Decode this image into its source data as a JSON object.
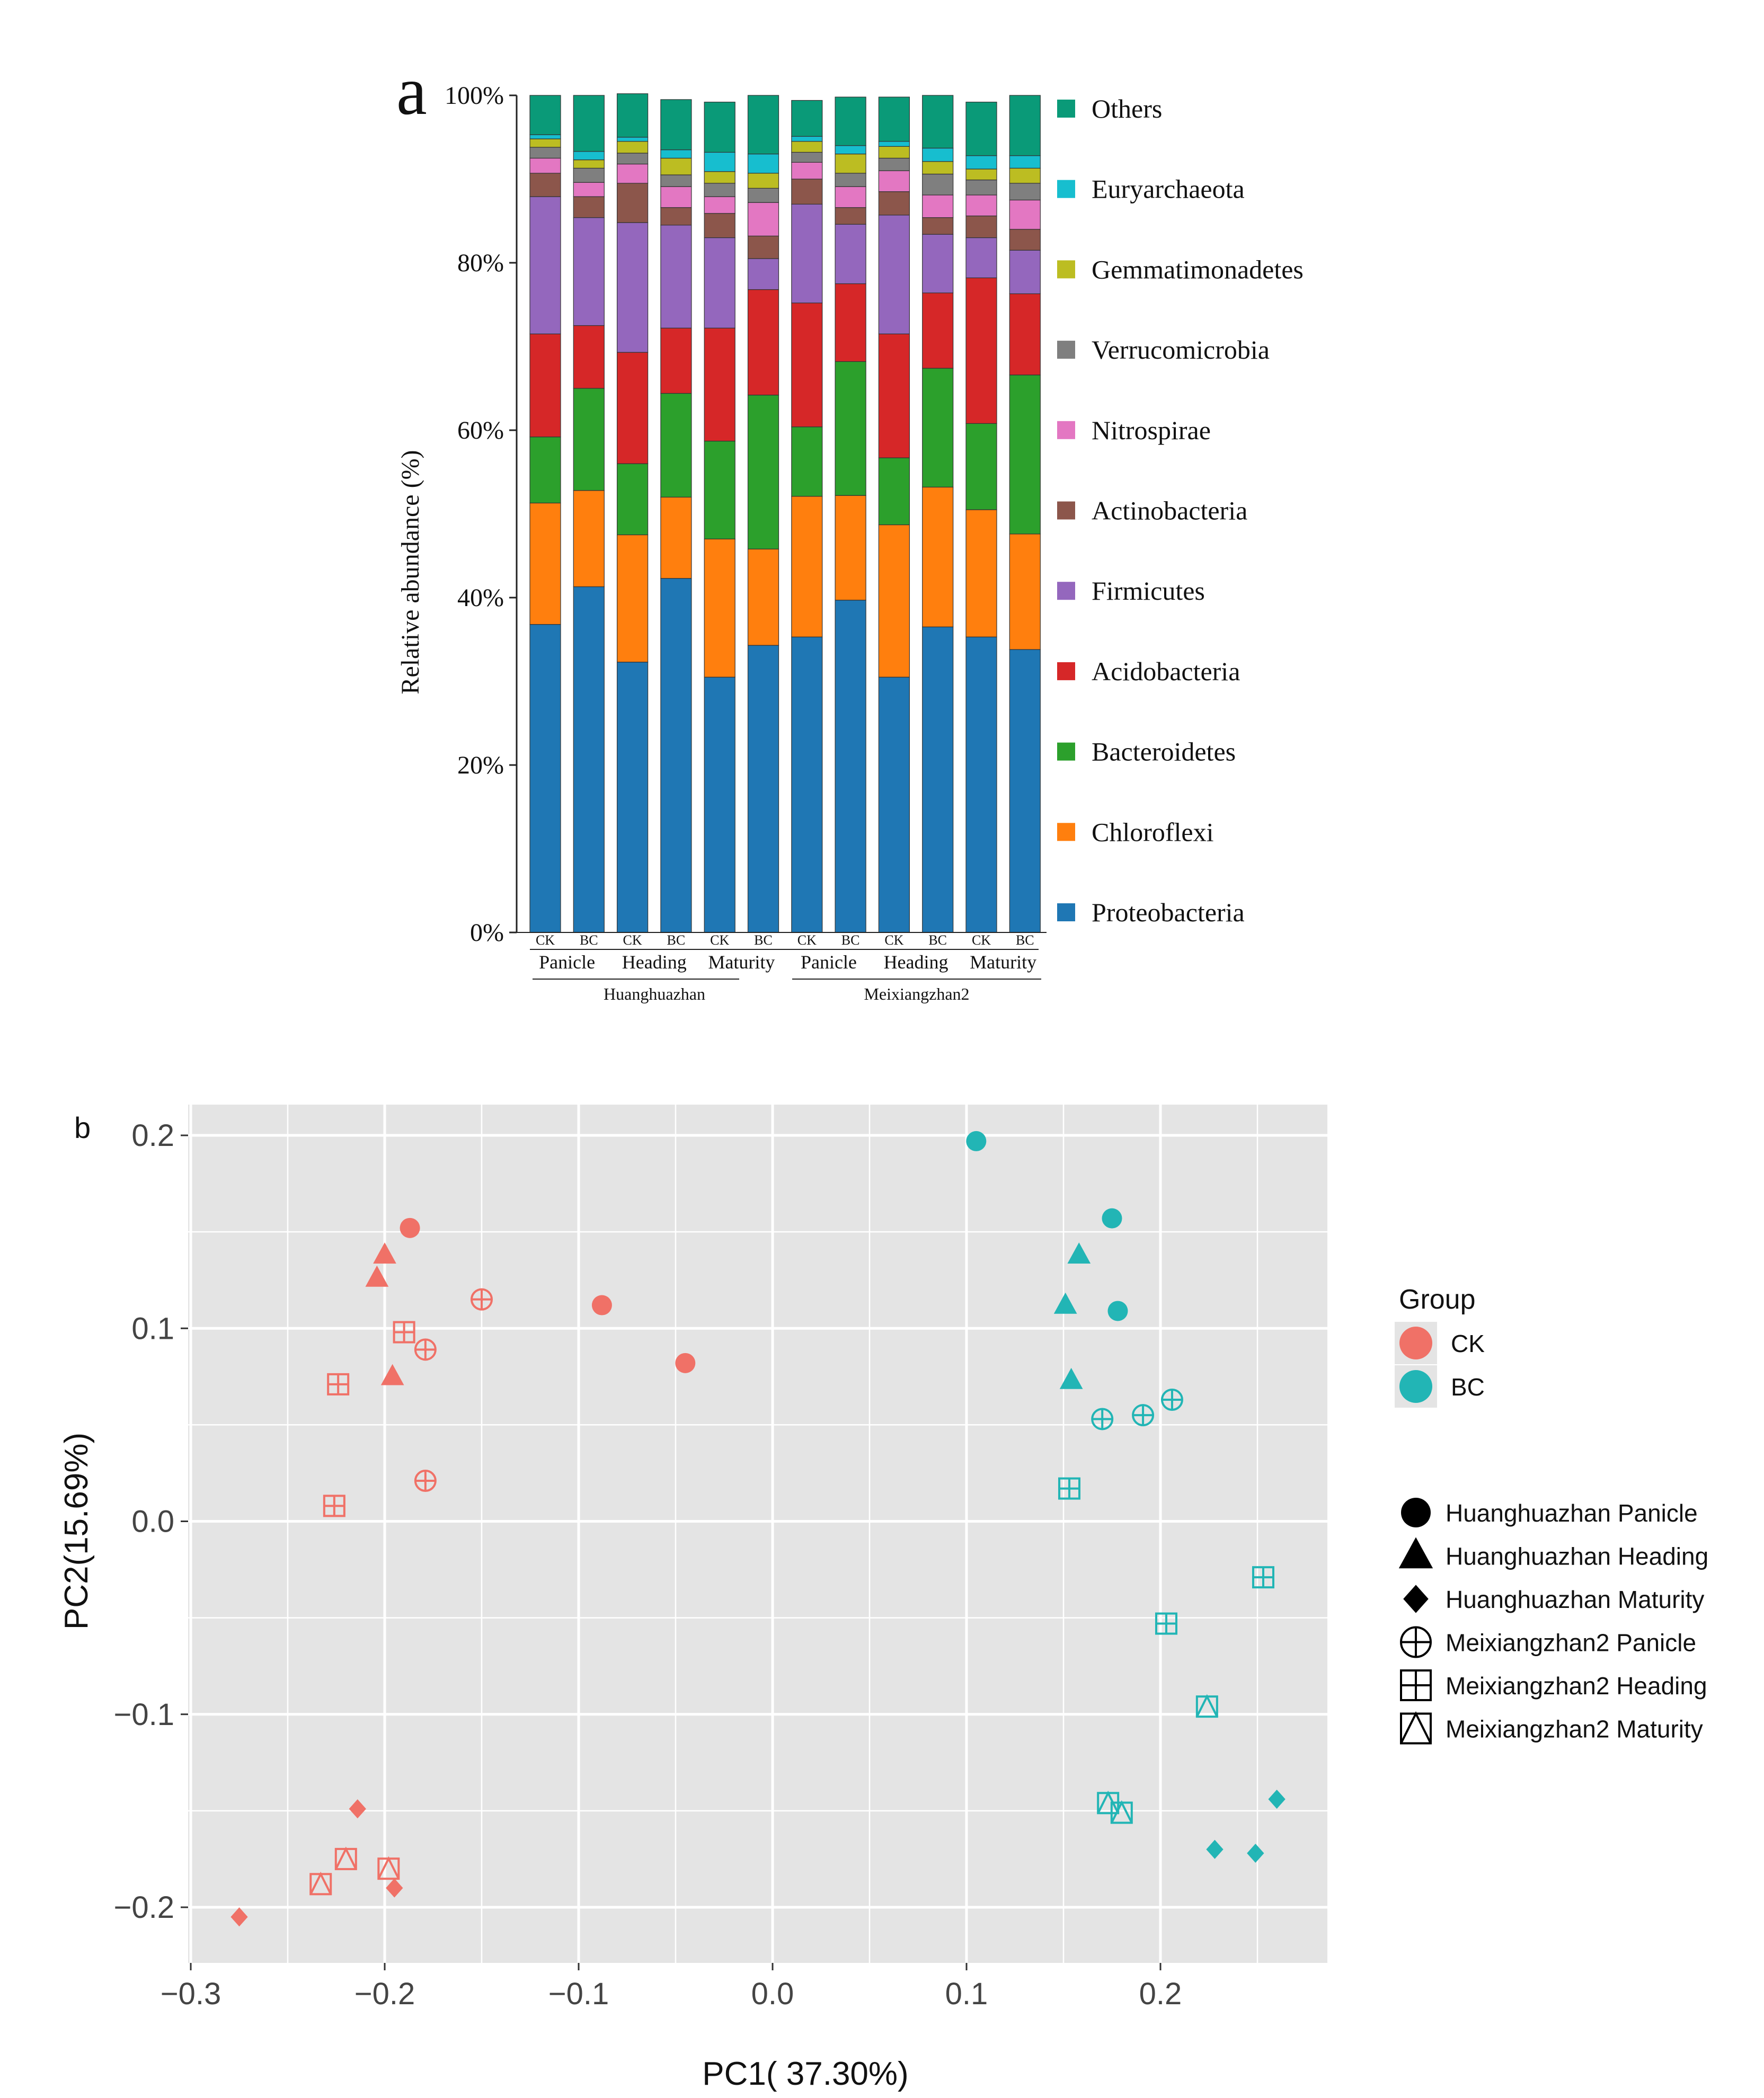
{
  "colors": {
    "Proteobacteria": "#1f77b4",
    "Chloroflexi": "#ff7f0e",
    "Bacteroidetes": "#2ca02c",
    "Acidobacteria": "#d62728",
    "Firmicutes": "#9467bd",
    "Actinobacteria": "#8c564b",
    "Nitrospirae": "#e377c2",
    "Verrucomicrobia": "#7f7f7f",
    "Gemmatimonadetes": "#bcbd22",
    "Euryarchaeota": "#17becf",
    "Others": "#0a9a78",
    "CK": "#f07167",
    "BC": "#22b5b5",
    "panel_bg": "#e4e4e4",
    "grid": "#ffffff"
  },
  "chart_data": [
    {
      "type": "bar",
      "stacked": true,
      "panel_label": "a",
      "ylabel": "Relative abundance (%)",
      "ylim": [
        0,
        100
      ],
      "yticks": [
        "0%",
        "20%",
        "40%",
        "60%",
        "80%",
        "100%"
      ],
      "categories": [
        "CK",
        "BC",
        "CK",
        "BC",
        "CK",
        "BC",
        "CK",
        "BC",
        "CK",
        "BC",
        "CK",
        "BC"
      ],
      "stage_labels": [
        "Panicle",
        "Heading",
        "Maturity",
        "Panicle",
        "Heading",
        "Maturity"
      ],
      "variety_labels": [
        "Huanghuazhan",
        "Meixiangzhan2"
      ],
      "legend": [
        "Others",
        "Euryarchaeota",
        "Gemmatimonadetes",
        "Verrucomicrobia",
        "Nitrospirae",
        "Actinobacteria",
        "Firmicutes",
        "Acidobacteria",
        "Bacteroidetes",
        "Chloroflexi",
        "Proteobacteria"
      ],
      "series": [
        {
          "name": "Proteobacteria",
          "values": [
            36.8,
            41.3,
            32.3,
            42.3,
            30.5,
            34.3,
            35.3,
            39.7,
            30.5,
            36.5,
            35.3,
            33.8
          ]
        },
        {
          "name": "Chloroflexi",
          "values": [
            14.5,
            11.5,
            15.2,
            9.7,
            16.5,
            11.5,
            16.8,
            12.5,
            18.2,
            16.7,
            15.2,
            13.8
          ]
        },
        {
          "name": "Bacteroidetes",
          "values": [
            7.9,
            12.2,
            8.5,
            12.4,
            11.7,
            18.4,
            8.3,
            16.0,
            8.0,
            14.2,
            10.3,
            19.0
          ]
        },
        {
          "name": "Acidobacteria",
          "values": [
            12.3,
            7.5,
            13.3,
            7.8,
            13.5,
            12.6,
            14.8,
            9.3,
            14.8,
            9.0,
            17.4,
            9.7
          ]
        },
        {
          "name": "Firmicutes",
          "values": [
            16.4,
            12.9,
            15.5,
            12.3,
            10.8,
            3.7,
            11.8,
            7.1,
            14.2,
            7.0,
            4.8,
            5.2
          ]
        },
        {
          "name": "Actinobacteria",
          "values": [
            2.8,
            2.5,
            4.7,
            2.1,
            2.9,
            2.7,
            3.0,
            2.0,
            2.8,
            2.0,
            2.6,
            2.5
          ]
        },
        {
          "name": "Nitrospirae",
          "values": [
            1.8,
            1.7,
            2.3,
            2.5,
            2.0,
            4.0,
            2.0,
            2.5,
            2.5,
            2.7,
            2.5,
            3.5
          ]
        },
        {
          "name": "Verrucomicrobia",
          "values": [
            1.3,
            1.7,
            1.3,
            1.4,
            1.6,
            1.7,
            1.2,
            1.6,
            1.5,
            2.5,
            1.8,
            2.0
          ]
        },
        {
          "name": "Gemmatimonadetes",
          "values": [
            1.0,
            1.0,
            1.4,
            2.0,
            1.4,
            1.8,
            1.3,
            2.3,
            1.4,
            1.5,
            1.3,
            1.8
          ]
        },
        {
          "name": "Euryarchaeota",
          "values": [
            0.5,
            1.0,
            0.5,
            1.0,
            2.3,
            2.3,
            0.6,
            1.0,
            0.6,
            1.6,
            1.6,
            1.5
          ]
        },
        {
          "name": "Others",
          "values": [
            4.7,
            6.7,
            5.2,
            6.0,
            6.0,
            7.0,
            4.3,
            5.8,
            5.3,
            6.3,
            6.4,
            7.2
          ]
        }
      ]
    },
    {
      "type": "scatter",
      "panel_label": "b",
      "xlabel": "PC1( 37.30%)",
      "ylabel": "PC2(15.69%)",
      "xlim": [
        -0.3,
        0.28
      ],
      "ylim": [
        -0.21,
        0.21
      ],
      "xticks": [
        -0.3,
        -0.2,
        -0.1,
        0.0,
        0.1,
        0.2
      ],
      "xtick_labels": [
        "−0.3",
        "−0.2",
        "−0.1",
        "0.0",
        "0.1",
        "0.2"
      ],
      "yticks": [
        -0.2,
        -0.1,
        0.0,
        0.1,
        0.2
      ],
      "ytick_labels": [
        "−0.2",
        "−0.1",
        "0.0",
        "0.1",
        "0.2"
      ],
      "legend_group_title": "Group",
      "legend_groups": [
        "CK",
        "BC"
      ],
      "legend_shapes": [
        {
          "shape": "circle",
          "label": "Huanghuazhan Panicle"
        },
        {
          "shape": "triangle",
          "label": "Huanghuazhan Heading"
        },
        {
          "shape": "diamond",
          "label": "Huanghuazhan Maturity"
        },
        {
          "shape": "circle-cross",
          "label": "Meixiangzhan2 Panicle"
        },
        {
          "shape": "square-cross",
          "label": "Meixiangzhan2 Heading"
        },
        {
          "shape": "square-triangle",
          "label": "Meixiangzhan2 Maturity"
        }
      ],
      "points": [
        {
          "group": "CK",
          "shape": "circle",
          "x": -0.187,
          "y": 0.152
        },
        {
          "group": "CK",
          "shape": "circle",
          "x": -0.088,
          "y": 0.112
        },
        {
          "group": "CK",
          "shape": "circle",
          "x": -0.045,
          "y": 0.082
        },
        {
          "group": "CK",
          "shape": "triangle",
          "x": -0.2,
          "y": 0.138
        },
        {
          "group": "CK",
          "shape": "triangle",
          "x": -0.204,
          "y": 0.126
        },
        {
          "group": "CK",
          "shape": "triangle",
          "x": -0.196,
          "y": 0.075
        },
        {
          "group": "CK",
          "shape": "diamond",
          "x": -0.214,
          "y": -0.149
        },
        {
          "group": "CK",
          "shape": "diamond",
          "x": -0.195,
          "y": -0.19
        },
        {
          "group": "CK",
          "shape": "diamond",
          "x": -0.275,
          "y": -0.205
        },
        {
          "group": "CK",
          "shape": "circle-cross",
          "x": -0.15,
          "y": 0.115
        },
        {
          "group": "CK",
          "shape": "circle-cross",
          "x": -0.179,
          "y": 0.089
        },
        {
          "group": "CK",
          "shape": "circle-cross",
          "x": -0.179,
          "y": 0.021
        },
        {
          "group": "CK",
          "shape": "square-cross",
          "x": -0.19,
          "y": 0.098
        },
        {
          "group": "CK",
          "shape": "square-cross",
          "x": -0.224,
          "y": 0.071
        },
        {
          "group": "CK",
          "shape": "square-cross",
          "x": -0.226,
          "y": 0.008
        },
        {
          "group": "CK",
          "shape": "square-triangle",
          "x": -0.22,
          "y": -0.175
        },
        {
          "group": "CK",
          "shape": "square-triangle",
          "x": -0.198,
          "y": -0.18
        },
        {
          "group": "CK",
          "shape": "square-triangle",
          "x": -0.233,
          "y": -0.188
        },
        {
          "group": "BC",
          "shape": "circle",
          "x": 0.105,
          "y": 0.197
        },
        {
          "group": "BC",
          "shape": "circle",
          "x": 0.175,
          "y": 0.157
        },
        {
          "group": "BC",
          "shape": "circle",
          "x": 0.178,
          "y": 0.109
        },
        {
          "group": "BC",
          "shape": "triangle",
          "x": 0.158,
          "y": 0.138
        },
        {
          "group": "BC",
          "shape": "triangle",
          "x": 0.151,
          "y": 0.112
        },
        {
          "group": "BC",
          "shape": "triangle",
          "x": 0.154,
          "y": 0.073
        },
        {
          "group": "BC",
          "shape": "diamond",
          "x": 0.26,
          "y": -0.144
        },
        {
          "group": "BC",
          "shape": "diamond",
          "x": 0.228,
          "y": -0.17
        },
        {
          "group": "BC",
          "shape": "diamond",
          "x": 0.249,
          "y": -0.172
        },
        {
          "group": "BC",
          "shape": "circle-cross",
          "x": 0.206,
          "y": 0.063
        },
        {
          "group": "BC",
          "shape": "circle-cross",
          "x": 0.17,
          "y": 0.053
        },
        {
          "group": "BC",
          "shape": "circle-cross",
          "x": 0.191,
          "y": 0.055
        },
        {
          "group": "BC",
          "shape": "square-cross",
          "x": 0.153,
          "y": 0.017
        },
        {
          "group": "BC",
          "shape": "square-cross",
          "x": 0.253,
          "y": -0.029
        },
        {
          "group": "BC",
          "shape": "square-cross",
          "x": 0.203,
          "y": -0.053
        },
        {
          "group": "BC",
          "shape": "square-triangle",
          "x": 0.224,
          "y": -0.096
        },
        {
          "group": "BC",
          "shape": "square-triangle",
          "x": 0.173,
          "y": -0.146
        },
        {
          "group": "BC",
          "shape": "square-triangle",
          "x": 0.18,
          "y": -0.151
        }
      ]
    }
  ]
}
